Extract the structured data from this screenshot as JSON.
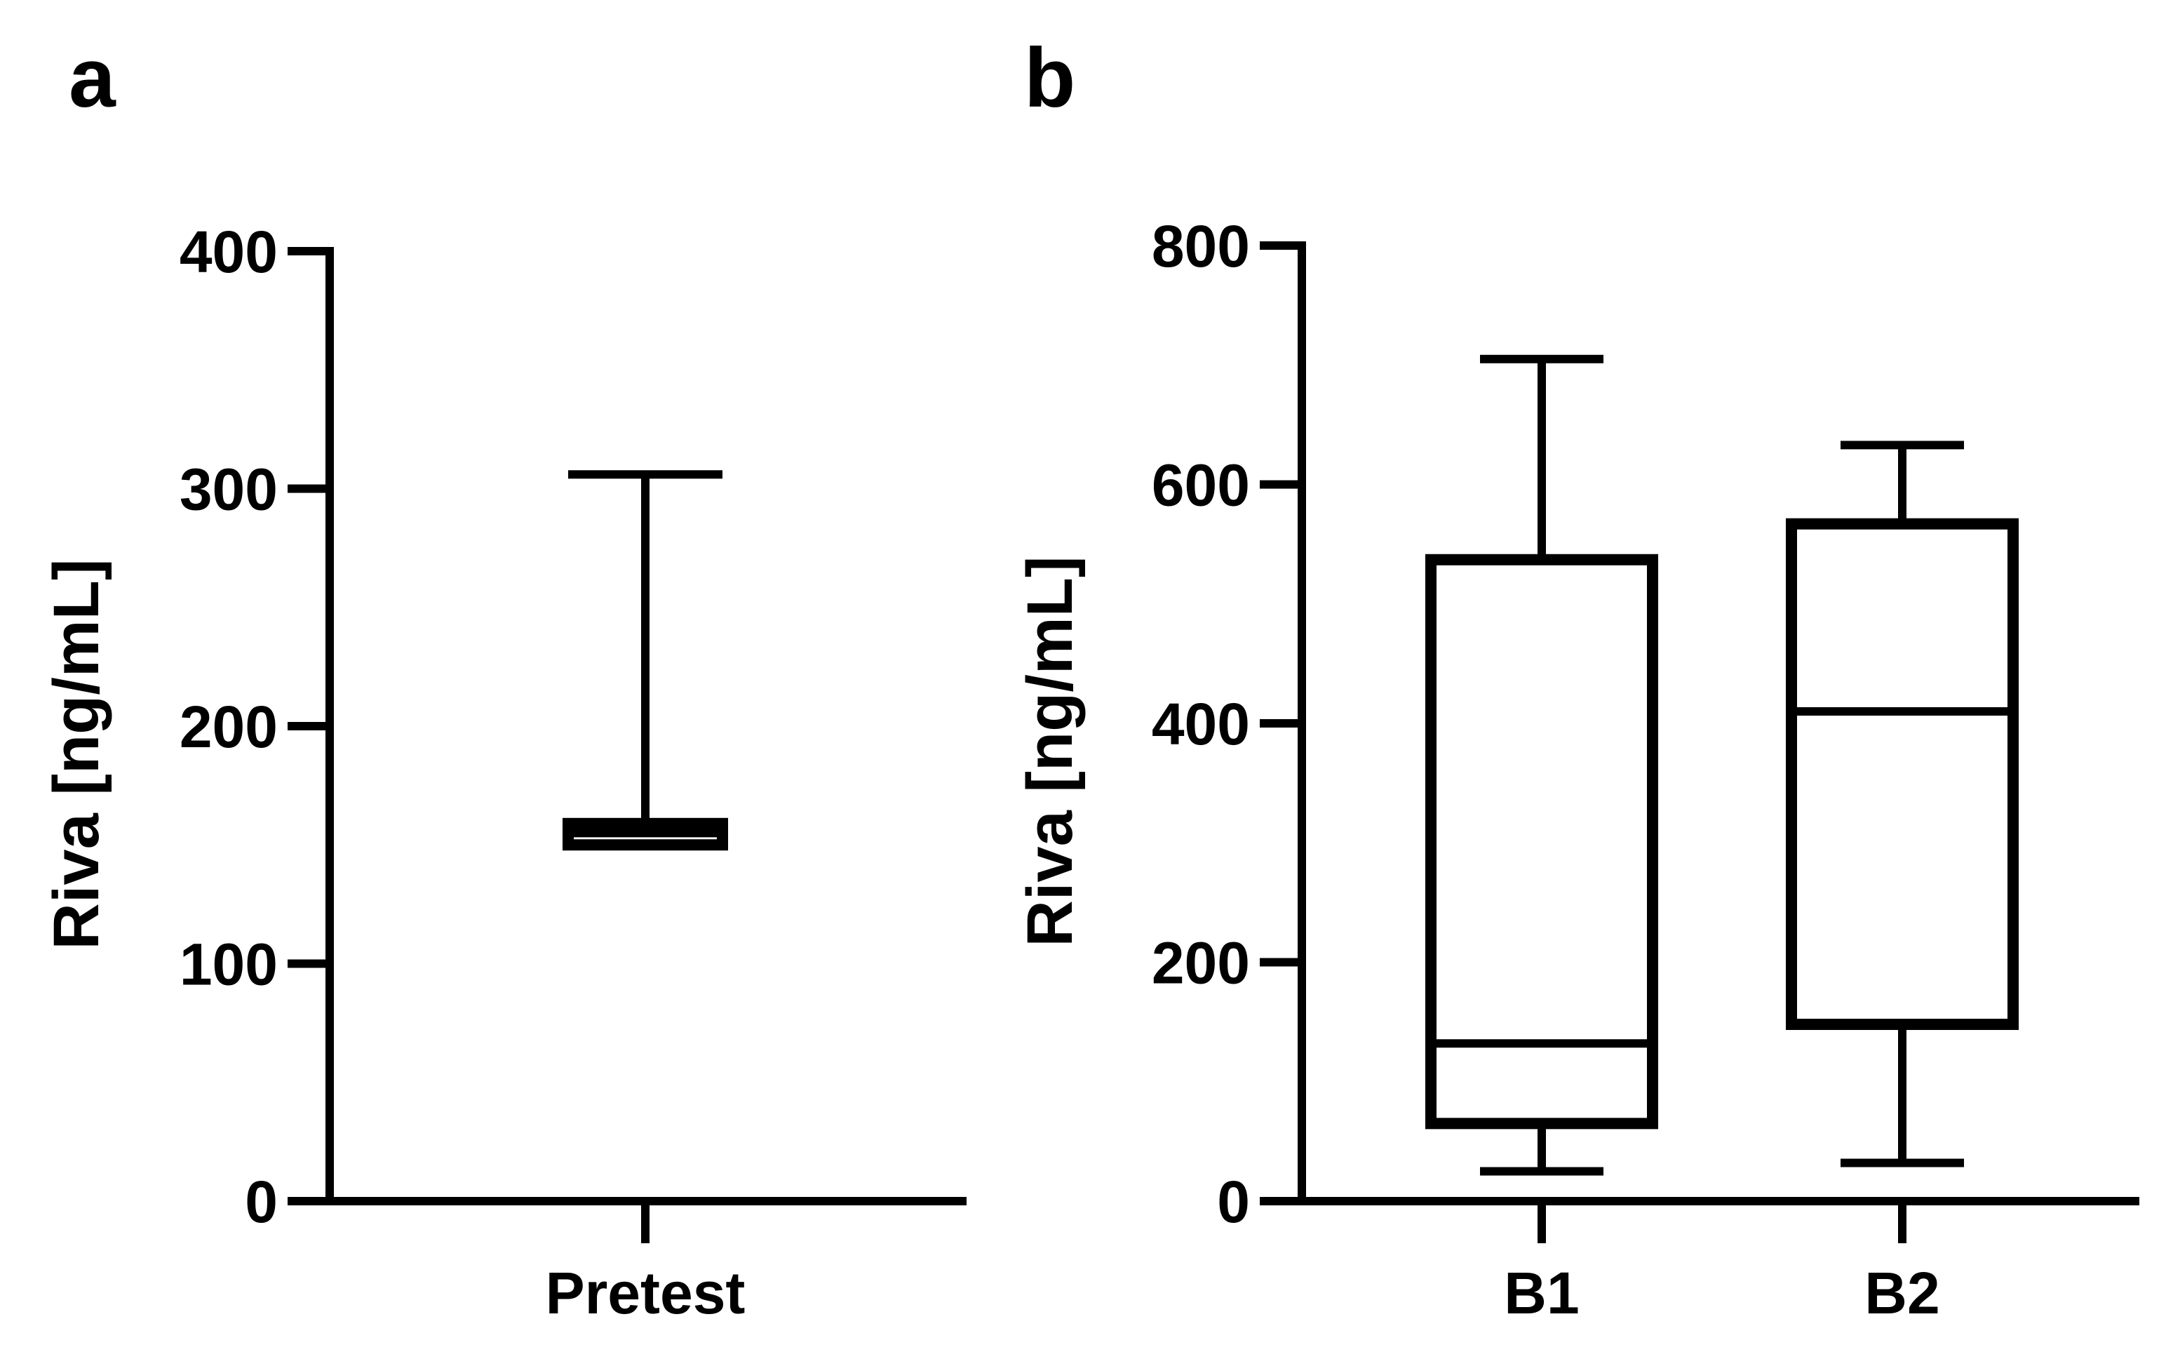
{
  "panels": [
    {
      "letter": "a"
    },
    {
      "letter": "b"
    }
  ],
  "chart_data": [
    {
      "type": "box",
      "title": "",
      "xlabel": "",
      "ylabel": "Riva [ng/mL]",
      "ylim": [
        0,
        400
      ],
      "yticks": [
        0,
        100,
        200,
        300,
        400
      ],
      "categories": [
        "Pretest"
      ],
      "boxes": [
        {
          "category": "Pretest",
          "min": 150,
          "q1": 150,
          "median": 155,
          "q3": 159,
          "max": 306
        }
      ],
      "grid": false,
      "color": "#000000"
    },
    {
      "type": "box",
      "title": "",
      "xlabel": "",
      "ylabel": "Riva [ng/mL]",
      "ylim": [
        0,
        800
      ],
      "yticks": [
        0,
        200,
        400,
        600,
        800
      ],
      "categories": [
        "B1",
        "B2"
      ],
      "boxes": [
        {
          "category": "B1",
          "min": 25,
          "q1": 65,
          "median": 132,
          "q3": 537,
          "max": 705
        },
        {
          "category": "B2",
          "min": 32,
          "q1": 148,
          "median": 410,
          "q3": 567,
          "max": 633
        }
      ],
      "grid": false,
      "color": "#000000"
    }
  ]
}
